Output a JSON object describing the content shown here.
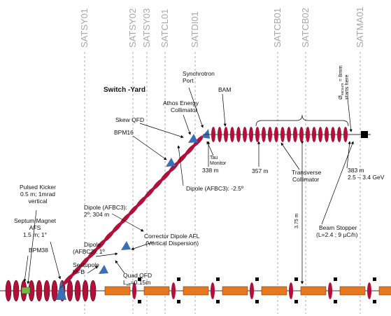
{
  "sections": [
    "SATSY01",
    "SATSY02",
    "SATSY03",
    "SATCL01",
    "SATDI01",
    "SATCB01",
    "SATCB02",
    "SATMA01"
  ],
  "title": "Switch -Yard",
  "synchrotron_port": [
    "Synchrotron",
    "Port"
  ],
  "bam": "BAM",
  "athos_energy_collimator": [
    "Athos Energy",
    "Collimator"
  ],
  "skew_qfd": "Skew QFD",
  "bpm16": "BPM16",
  "tau_monitor": [
    "Tau",
    "Monitor"
  ],
  "pos_338": "338 m",
  "pos_357": "357 m",
  "transverse_collimator": [
    "Transverse",
    "Collimator"
  ],
  "pos_383": [
    "383 m",
    "2.5 – 3.4 GeV"
  ],
  "vacuum": {
    "symbol": "Ø",
    "sub": "vacuum",
    "rest": " = 8mm",
    "line2": "starts here"
  },
  "dipole_neg": "Dipole (AFBC3): -2.5º",
  "pulsed_kicker": [
    "Pulsed Kicker",
    "0.5 m; 1mrad",
    "vertical"
  ],
  "dipole_2": [
    "Dipole (AFBC3):",
    "2º; 304 m"
  ],
  "beam_stopper": [
    "Beam Stopper",
    "(L=2.4 ; 9 µC/h)"
  ],
  "distance": "3.75 m",
  "septum": [
    "Septum Magnet",
    "AFS",
    "1.5 m; 1°"
  ],
  "dipole_1": [
    "Dipole",
    "(AFBC3): 1º"
  ],
  "sextupole": [
    "Sextupole",
    "HFB"
  ],
  "corrector": [
    "Corrector Dipole AFL",
    "(Vertical Dispersion)"
  ],
  "bpm38": "BPM38",
  "quad_qfd": {
    "line1": "Quad QFD",
    "main": "L",
    "sub": "eff",
    "rest": "=0.15m"
  }
}
